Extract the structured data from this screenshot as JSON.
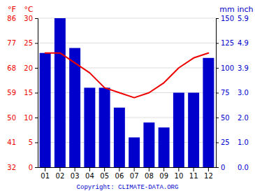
{
  "chart_data": {
    "type": "bar",
    "categories": [
      "01",
      "02",
      "03",
      "04",
      "05",
      "06",
      "07",
      "08",
      "09",
      "10",
      "11",
      "12"
    ],
    "series": [
      {
        "type": "bar",
        "color": "#0000cc",
        "axis": "y2",
        "values": [
          115,
          150,
          120,
          80,
          80,
          60,
          30,
          45,
          40,
          75,
          75,
          110
        ]
      },
      {
        "type": "line",
        "color": "#ee0000",
        "values": [
          23,
          23,
          21,
          19,
          16,
          15,
          14,
          15,
          17,
          20,
          22,
          23
        ]
      }
    ],
    "ylim": [
      0,
      30
    ],
    "yticks": [
      0,
      5,
      10,
      15,
      20,
      25,
      30
    ],
    "ylabel": "°C",
    "y2lim": [
      0,
      150
    ],
    "y2ticks": [
      0,
      25,
      50,
      75,
      100,
      125,
      150
    ],
    "y2label": "mm",
    "y3lim": [
      0,
      30
    ],
    "y3ticks": [
      {
        "value": 0,
        "label": "32"
      },
      {
        "value": 5,
        "label": "41"
      },
      {
        "value": 10,
        "label": "50"
      },
      {
        "value": 15,
        "label": "59"
      },
      {
        "value": 20,
        "label": "68"
      },
      {
        "value": 25,
        "label": "77"
      },
      {
        "value": 30,
        "label": "86"
      }
    ],
    "y3label": "°F",
    "y4lim": [
      0,
      150
    ],
    "y4ticks": [
      {
        "value": 0,
        "label": "0.0"
      },
      {
        "value": 25,
        "label": "1.0"
      },
      {
        "value": 50,
        "label": "2.0"
      },
      {
        "value": 75,
        "label": "3.0"
      },
      {
        "value": 100,
        "label": "3.9"
      },
      {
        "value": 125,
        "label": "4.9"
      },
      {
        "value": 150,
        "label": "5.9"
      }
    ],
    "y4label": "inch",
    "grid": true,
    "annotations": [
      "Copyright: CLIMATE-DATA.ORG"
    ]
  }
}
